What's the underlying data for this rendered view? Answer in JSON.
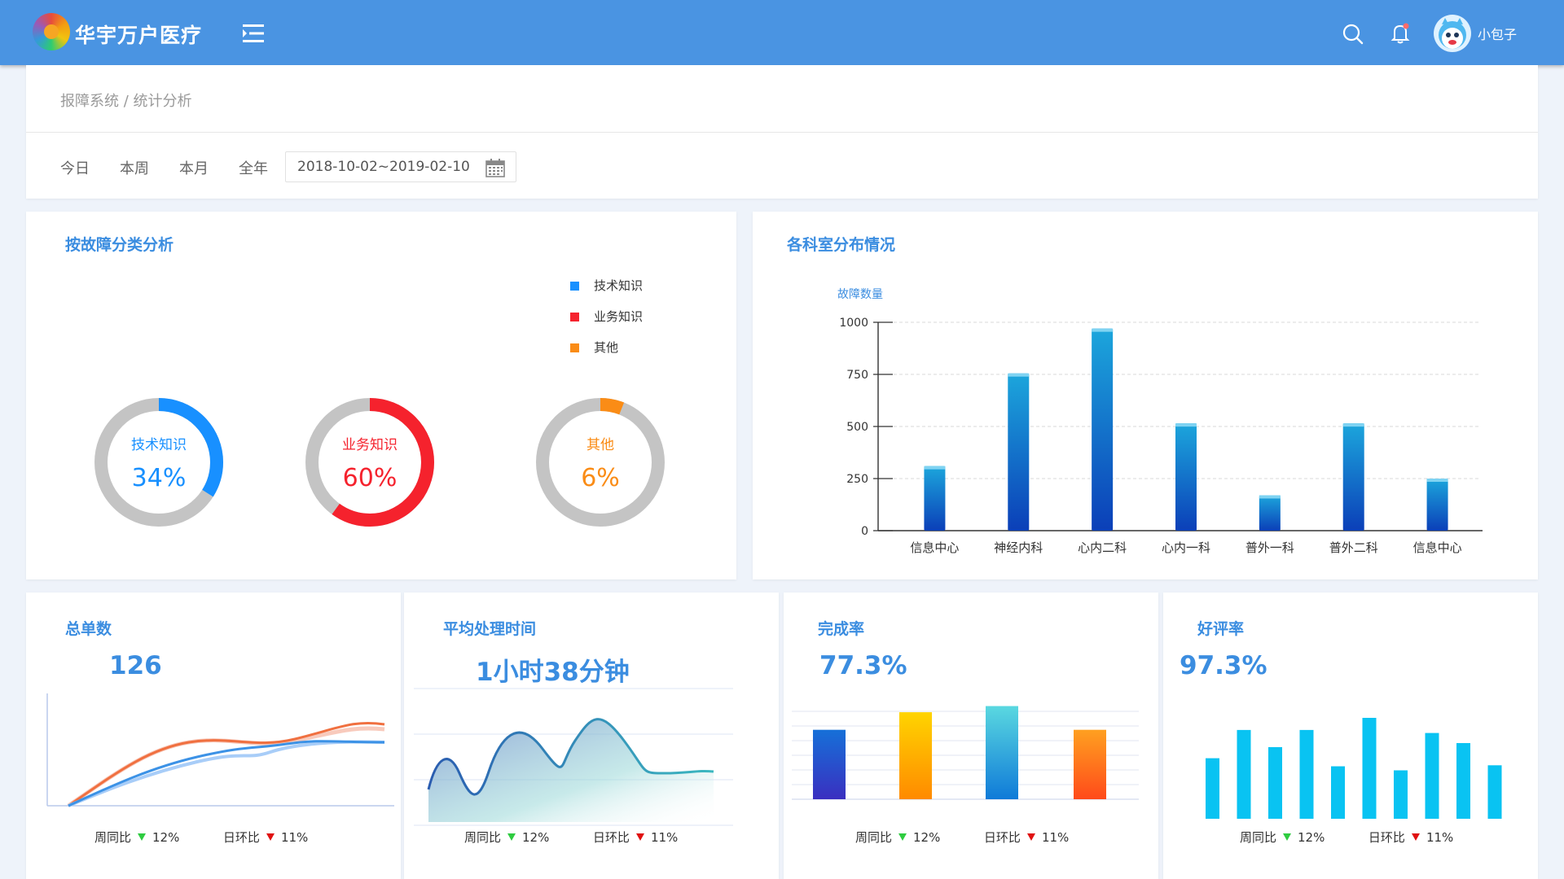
{
  "header": {
    "app_name": "华宇万户医疗",
    "user_name": "小包子",
    "bar_color": "#4a94e2"
  },
  "breadcrumb": "报障系统 / 统计分析",
  "filters": {
    "today": "今日",
    "week": "本周",
    "month": "本月",
    "year": "全年",
    "date_range": "2018-10-02~2019-02-10"
  },
  "fault_category": {
    "title": "按故障分类分析",
    "legend": [
      {
        "label": "技术知识",
        "color": "#1890ff"
      },
      {
        "label": "业务知识",
        "color": "#f5222d"
      },
      {
        "label": "其他",
        "color": "#fa8c16"
      }
    ],
    "donuts": [
      {
        "label": "技术知识",
        "value": "34%",
        "percent": 34,
        "color": "#1890ff"
      },
      {
        "label": "业务知识",
        "value": "60%",
        "percent": 60,
        "color": "#f5222d"
      },
      {
        "label": "其他",
        "value": "6%",
        "percent": 6,
        "color": "#fa8c16"
      }
    ]
  },
  "dept_chart": {
    "title": "各科室分布情况",
    "chart_data": {
      "type": "bar",
      "ylabel": "故障数量",
      "ylim": [
        0,
        1000
      ],
      "yticks": [
        "0",
        "250",
        "500",
        "750",
        "1000"
      ],
      "categories": [
        "信息中心",
        "神经内科",
        "心内二科",
        "心内一科",
        "普外一科",
        "普外二科",
        "信息中心"
      ],
      "values": [
        310,
        755,
        970,
        515,
        170,
        515,
        250
      ],
      "grid": true
    }
  },
  "total_orders": {
    "title": "总单数",
    "value": "126",
    "week_label": "周同比",
    "week_value": "12%",
    "day_label": "日环比",
    "day_value": "11%"
  },
  "avg_time": {
    "title": "平均处理时间",
    "value": "1小时38分钟",
    "week_label": "周同比",
    "week_value": "12%",
    "day_label": "日环比",
    "day_value": "11%"
  },
  "completion": {
    "title": "完成率",
    "value": "77.3%",
    "week_label": "周同比",
    "week_value": "12%",
    "day_label": "日环比",
    "day_value": "11%",
    "bar_levels": [
      0.79,
      0.99,
      1.06,
      0.79
    ]
  },
  "satisfaction": {
    "title": "好评率",
    "value": "97.3%",
    "week_label": "周同比",
    "week_value": "12%",
    "day_label": "日环比",
    "day_value": "11%",
    "bar_levels": [
      0.6,
      0.88,
      0.71,
      0.88,
      0.52,
      1.0,
      0.48,
      0.85,
      0.75,
      0.53
    ]
  }
}
